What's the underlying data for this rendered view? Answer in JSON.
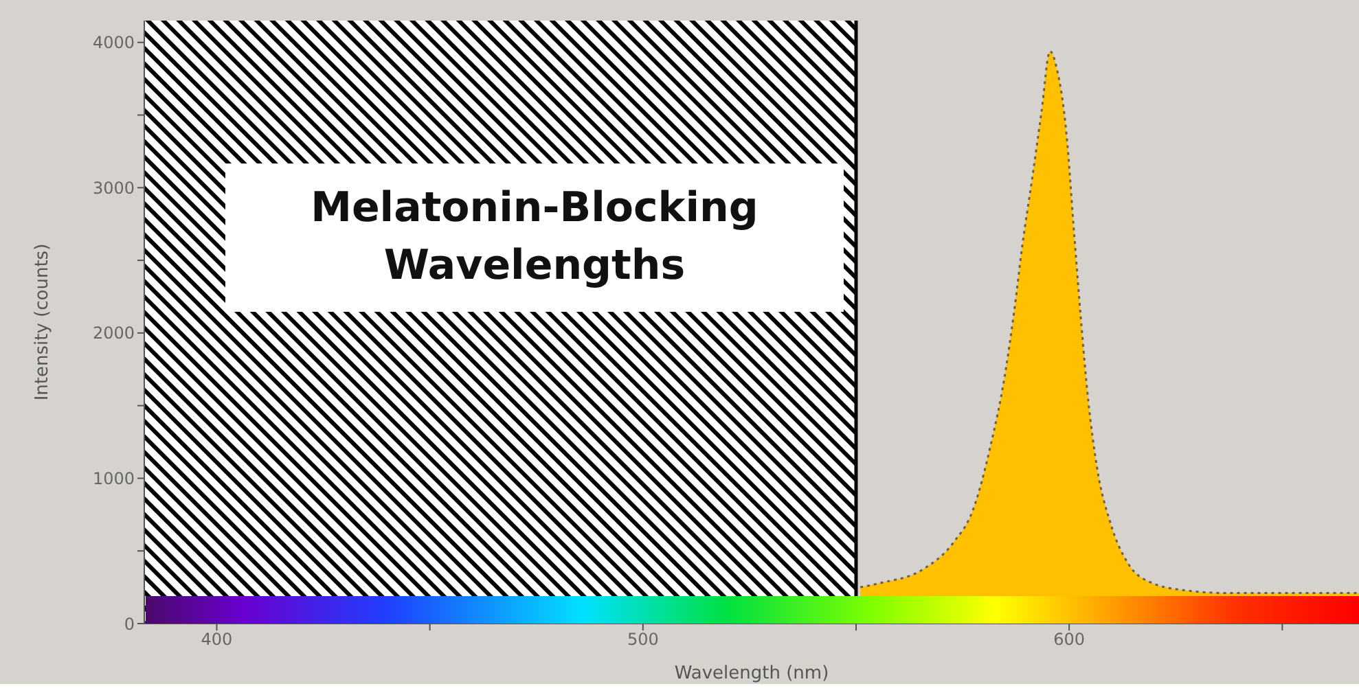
{
  "chart_data": {
    "type": "area",
    "xlabel": "Wavelength (nm)",
    "ylabel": "Intensity (counts)",
    "xlim": [
      383,
      668
    ],
    "ylim": [
      0,
      4150
    ],
    "xticks": [
      400,
      {
        "value": 450,
        "label": null
      },
      500,
      {
        "value": 550,
        "label": null
      },
      600,
      {
        "value": 650,
        "label": null
      }
    ],
    "yticks": [
      0,
      {
        "value": 500,
        "label": null
      },
      1000,
      {
        "value": 1500,
        "label": null
      },
      2000,
      {
        "value": 2500,
        "label": null
      },
      3000,
      {
        "value": 3500,
        "label": null
      },
      4000
    ],
    "series": [
      {
        "color": "#ffc000",
        "line_style": "dotted",
        "x": [
          551,
          555.8,
          565.5,
          572.9,
          577.4,
          581.6,
          584.8,
          587.1,
          589,
          591.3,
          593.5,
          595.5,
          597.1,
          599.4,
          601,
          602.6,
          604.5,
          606.5,
          609.7,
          613.9,
          619.4,
          626.8,
          637.4,
          668
        ],
        "values": [
          250,
          280,
          370,
          560,
          780,
          1230,
          1690,
          2150,
          2600,
          3060,
          3520,
          3940,
          3820,
          3360,
          2750,
          2150,
          1530,
          1080,
          690,
          410,
          280,
          230,
          210,
          210
        ]
      }
    ],
    "bands": [
      {
        "axis": "x",
        "from": 383,
        "to": 550,
        "label": "Melatonin-Blocking Wavelengths",
        "color": "#000000"
      }
    ],
    "ref_lines": [
      {
        "axis": "x",
        "value": 550,
        "color": "#000000"
      }
    ]
  }
}
